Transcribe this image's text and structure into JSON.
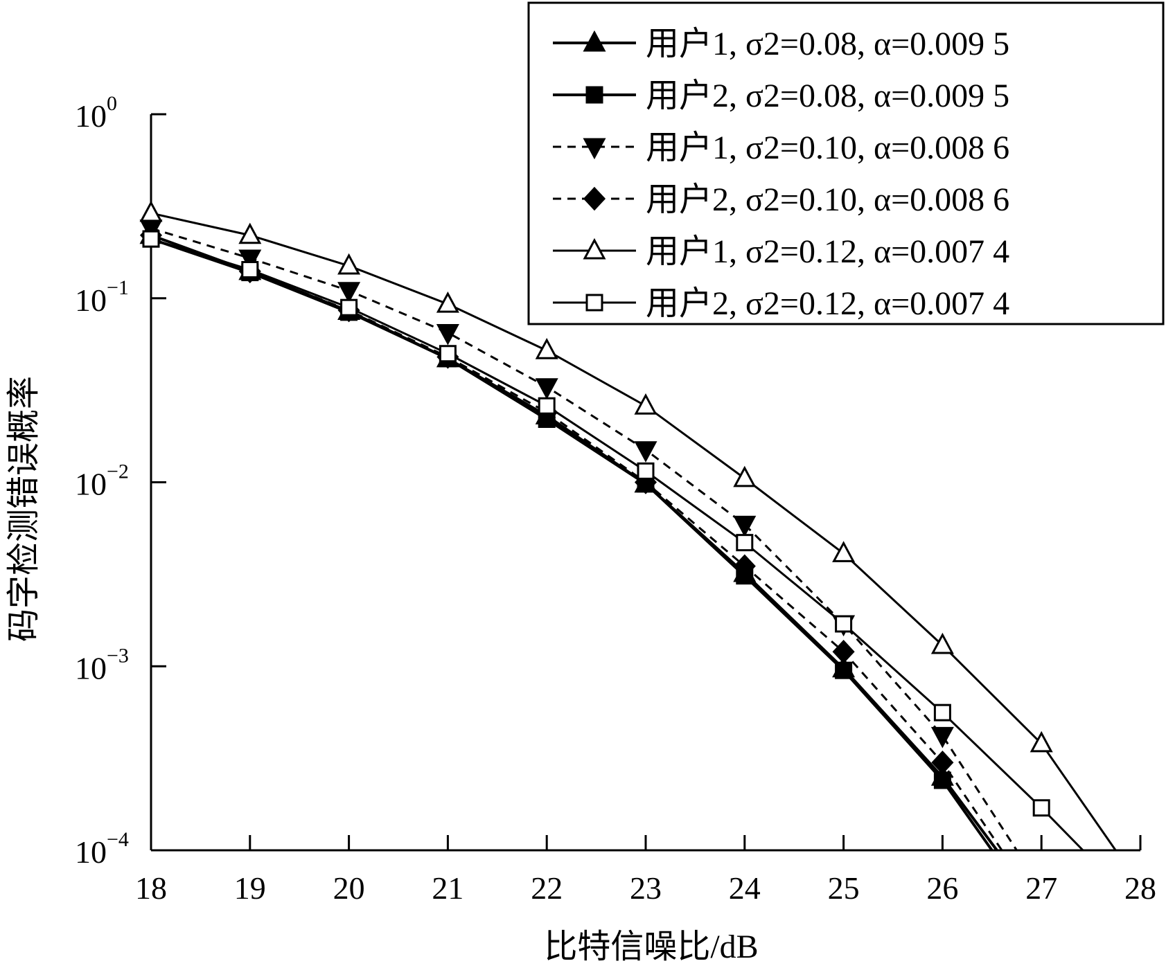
{
  "chart_data": {
    "type": "line",
    "xlabel": "比特信噪比/dB",
    "ylabel": "码字检测错误概率",
    "xlim": [
      18,
      28
    ],
    "ylim": [
      0.0001,
      1
    ],
    "yscale": "log",
    "grid": false,
    "legend_position": "top-right",
    "x_ticks": [
      "18",
      "19",
      "20",
      "21",
      "22",
      "23",
      "24",
      "25",
      "26",
      "27",
      "28"
    ],
    "y_ticks": [
      {
        "value": 1,
        "base": "10",
        "exp": "0"
      },
      {
        "value": 0.1,
        "base": "10",
        "exp": "−1"
      },
      {
        "value": 0.01,
        "base": "10",
        "exp": "−2"
      },
      {
        "value": 0.001,
        "base": "10",
        "exp": "−3"
      },
      {
        "value": 0.0001,
        "base": "10",
        "exp": "−4"
      }
    ],
    "series": [
      {
        "name": "用户1, σ2=0.08, α=0.009 5",
        "line": "solid",
        "width": 4,
        "marker": "triangle-up",
        "filled": true,
        "x": [
          18,
          19,
          20,
          21,
          22,
          23,
          24,
          25,
          26,
          26.55
        ],
        "y": [
          0.22,
          0.14,
          0.085,
          0.047,
          0.023,
          0.0098,
          0.0032,
          0.00097,
          0.00025,
          0.0001
        ]
      },
      {
        "name": "用户2, σ2=0.08, α=0.009 5",
        "line": "solid",
        "width": 4,
        "marker": "square",
        "filled": true,
        "x": [
          18,
          19,
          20,
          21,
          22,
          23,
          24,
          25,
          26,
          26.5
        ],
        "y": [
          0.21,
          0.138,
          0.084,
          0.047,
          0.022,
          0.0098,
          0.0031,
          0.00095,
          0.00024,
          0.0001
        ]
      },
      {
        "name": "用户1, σ2=0.10, α=0.008 6",
        "line": "dashed",
        "width": 3,
        "marker": "triangle-down",
        "filled": true,
        "x": [
          18,
          19,
          20,
          21,
          22,
          23,
          24,
          25,
          26,
          26.75
        ],
        "y": [
          0.24,
          0.165,
          0.11,
          0.065,
          0.033,
          0.015,
          0.0059,
          0.0017,
          0.00042,
          0.0001
        ]
      },
      {
        "name": "用户2, σ2=0.10, α=0.008 6",
        "line": "dashed",
        "width": 3,
        "marker": "diamond",
        "filled": true,
        "x": [
          18,
          19,
          20,
          21,
          22,
          23,
          24,
          25,
          26,
          26.6
        ],
        "y": [
          0.22,
          0.14,
          0.086,
          0.048,
          0.024,
          0.01,
          0.0035,
          0.0012,
          0.0003,
          0.0001
        ]
      },
      {
        "name": "用户1, σ2=0.12, α=0.007 4",
        "line": "solid",
        "width": 3,
        "marker": "triangle-up",
        "filled": false,
        "x": [
          18,
          19,
          20,
          21,
          22,
          23,
          24,
          25,
          26,
          27,
          27.75
        ],
        "y": [
          0.29,
          0.22,
          0.15,
          0.093,
          0.052,
          0.026,
          0.0105,
          0.0041,
          0.0013,
          0.00038,
          0.0001
        ]
      },
      {
        "name": "用户2, σ2=0.12, α=0.007 4",
        "line": "solid",
        "width": 3,
        "marker": "square",
        "filled": false,
        "x": [
          18,
          19,
          20,
          21,
          22,
          23,
          24,
          25,
          26,
          27,
          27.42
        ],
        "y": [
          0.21,
          0.143,
          0.089,
          0.05,
          0.026,
          0.0115,
          0.0047,
          0.0017,
          0.00056,
          0.00017,
          0.0001
        ]
      }
    ]
  }
}
